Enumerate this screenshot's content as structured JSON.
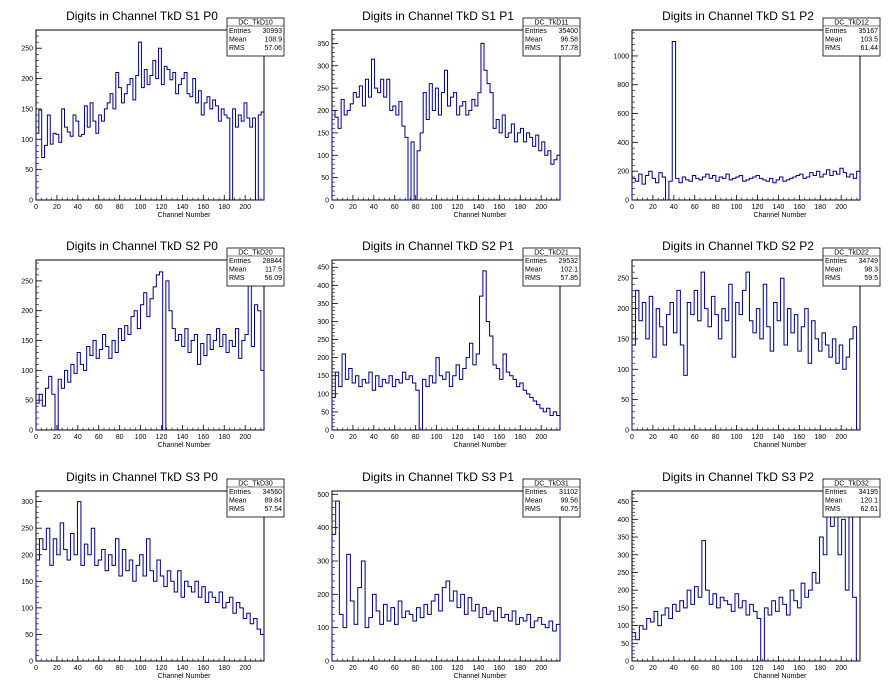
{
  "canvas": {
    "background": "#ffffff",
    "line_color": "#000080",
    "axis_color": "#000000"
  },
  "chart_data": [
    {
      "type": "line",
      "title": "Digits in Channel TkD S1 P0",
      "xlabel": "Channel Number",
      "stats": {
        "name": "DC_TkD10",
        "entries": "30993",
        "mean": "108.9",
        "rms": "57.06"
      },
      "xlim": [
        0,
        218
      ],
      "ylim": [
        0,
        280
      ],
      "xticks": [
        0,
        20,
        40,
        60,
        80,
        100,
        120,
        140,
        160,
        180,
        200
      ],
      "yticks": [
        0,
        50,
        100,
        150,
        200,
        250
      ],
      "y": [
        110,
        148,
        70,
        90,
        140,
        92,
        110,
        108,
        95,
        150,
        120,
        112,
        105,
        140,
        130,
        105,
        108,
        155,
        120,
        160,
        130,
        110,
        140,
        130,
        150,
        160,
        175,
        150,
        210,
        185,
        160,
        175,
        190,
        200,
        165,
        205,
        260,
        185,
        215,
        190,
        205,
        230,
        200,
        250,
        190,
        220,
        215,
        198,
        210,
        175,
        190,
        200,
        210,
        175,
        170,
        200,
        160,
        180,
        140,
        160,
        170,
        150,
        165,
        155,
        130,
        150,
        140,
        135,
        0,
        150,
        120,
        140,
        130,
        160,
        135,
        120,
        135,
        0,
        140,
        145
      ],
      "line_color": "#000080"
    },
    {
      "type": "line",
      "title": "Digits in Channel TkD S1 P1",
      "xlabel": "Channel Number",
      "stats": {
        "name": "DC_TkD11",
        "entries": "35400",
        "mean": "96.58",
        "rms": "57.78"
      },
      "xlim": [
        0,
        218
      ],
      "ylim": [
        0,
        380
      ],
      "xticks": [
        0,
        20,
        40,
        60,
        80,
        100,
        120,
        140,
        160,
        180,
        200
      ],
      "yticks": [
        0,
        50,
        100,
        150,
        200,
        250,
        300,
        350
      ],
      "y": [
        200,
        185,
        160,
        225,
        190,
        200,
        215,
        240,
        230,
        255,
        210,
        270,
        230,
        315,
        250,
        240,
        270,
        230,
        270,
        200,
        210,
        190,
        220,
        165,
        140,
        0,
        130,
        0,
        110,
        150,
        240,
        180,
        260,
        200,
        250,
        190,
        240,
        290,
        210,
        230,
        240,
        190,
        210,
        220,
        190,
        200,
        225,
        210,
        240,
        350,
        290,
        260,
        240,
        160,
        180,
        150,
        190,
        140,
        150,
        170,
        130,
        150,
        160,
        130,
        150,
        140,
        120,
        145,
        110,
        130,
        100,
        110,
        80,
        90,
        100
      ],
      "line_color": "#000080"
    },
    {
      "type": "line",
      "title": "Digits in Channel TkD S1 P2",
      "xlabel": "Channel Number",
      "stats": {
        "name": "DC_TkD12",
        "entries": "35167",
        "mean": "103.5",
        "rms": "61.44"
      },
      "xlim": [
        0,
        218
      ],
      "ylim": [
        0,
        1180
      ],
      "xticks": [
        0,
        20,
        40,
        60,
        80,
        100,
        120,
        140,
        160,
        180,
        200
      ],
      "yticks": [
        0,
        200,
        400,
        600,
        800,
        1000
      ],
      "y": [
        150,
        130,
        180,
        110,
        170,
        200,
        150,
        120,
        190,
        160,
        0,
        130,
        1100,
        150,
        120,
        160,
        140,
        130,
        170,
        150,
        140,
        160,
        180,
        150,
        170,
        130,
        160,
        150,
        180,
        140,
        150,
        160,
        170,
        130,
        140,
        150,
        160,
        170,
        150,
        140,
        130,
        150,
        120,
        140,
        160,
        130,
        140,
        150,
        160,
        170,
        180,
        150,
        160,
        190,
        170,
        200,
        160,
        180,
        210,
        170,
        200,
        180,
        220,
        190,
        160,
        180,
        150,
        200
      ],
      "line_color": "#000080"
    },
    {
      "type": "line",
      "title": "Digits in Channel TkD S2 P0",
      "xlabel": "Channel Number",
      "stats": {
        "name": "DC_TkD20",
        "entries": "28844",
        "mean": "117.5",
        "rms": "56.09"
      },
      "xlim": [
        0,
        218
      ],
      "ylim": [
        0,
        285
      ],
      "xticks": [
        0,
        20,
        40,
        60,
        80,
        100,
        120,
        140,
        160,
        180,
        200
      ],
      "yticks": [
        0,
        50,
        100,
        150,
        200,
        250
      ],
      "y": [
        45,
        60,
        40,
        70,
        90,
        60,
        0,
        85,
        70,
        100,
        80,
        110,
        95,
        130,
        110,
        100,
        140,
        125,
        150,
        120,
        135,
        160,
        140,
        120,
        150,
        130,
        170,
        150,
        175,
        160,
        190,
        200,
        170,
        210,
        230,
        190,
        220,
        240,
        260,
        265,
        0,
        250,
        200,
        170,
        150,
        160,
        140,
        170,
        130,
        150,
        160,
        110,
        145,
        125,
        160,
        135,
        150,
        170,
        140,
        160,
        130,
        150,
        140,
        170,
        120,
        150,
        160,
        250,
        140,
        210,
        200,
        100
      ],
      "line_color": "#000080"
    },
    {
      "type": "line",
      "title": "Digits in Channel TkD S2 P1",
      "xlabel": "Channel Number",
      "stats": {
        "name": "DC_TkD21",
        "entries": "29532",
        "mean": "102.1",
        "rms": "57.85"
      },
      "xlim": [
        0,
        218
      ],
      "ylim": [
        0,
        470
      ],
      "xticks": [
        0,
        20,
        40,
        60,
        80,
        100,
        120,
        140,
        160,
        180,
        200
      ],
      "yticks": [
        0,
        50,
        100,
        150,
        200,
        250,
        300,
        350,
        400,
        450
      ],
      "y": [
        90,
        160,
        120,
        210,
        140,
        170,
        130,
        150,
        120,
        140,
        130,
        160,
        110,
        150,
        120,
        140,
        130,
        150,
        120,
        140,
        130,
        160,
        140,
        150,
        130,
        110,
        0,
        140,
        120,
        150,
        130,
        200,
        150,
        140,
        160,
        120,
        150,
        180,
        140,
        170,
        200,
        240,
        180,
        210,
        370,
        440,
        300,
        260,
        180,
        170,
        140,
        210,
        160,
        150,
        140,
        120,
        130,
        110,
        100,
        90,
        80,
        70,
        60,
        50,
        60,
        40,
        50,
        40
      ],
      "line_color": "#000080"
    },
    {
      "type": "line",
      "title": "Digits in Channel TkD S2 P2",
      "xlabel": "Channel Number",
      "stats": {
        "name": "DC_TkD22",
        "entries": "34749",
        "mean": "98.3",
        "rms": "59.5"
      },
      "xlim": [
        0,
        218
      ],
      "ylim": [
        0,
        280
      ],
      "xticks": [
        0,
        20,
        40,
        60,
        80,
        100,
        120,
        140,
        160,
        180,
        200
      ],
      "yticks": [
        0,
        50,
        100,
        150,
        200,
        250
      ],
      "y": [
        140,
        230,
        180,
        210,
        150,
        220,
        120,
        200,
        170,
        140,
        190,
        210,
        160,
        230,
        140,
        90,
        210,
        190,
        230,
        180,
        260,
        200,
        170,
        220,
        190,
        150,
        200,
        180,
        240,
        120,
        210,
        190,
        230,
        260,
        180,
        160,
        200,
        150,
        240,
        170,
        130,
        210,
        180,
        250,
        140,
        200,
        160,
        190,
        130,
        170,
        200,
        110,
        180,
        150,
        130,
        160,
        140,
        120,
        150,
        110,
        140,
        100,
        120,
        150,
        170,
        0
      ],
      "line_color": "#000080"
    },
    {
      "type": "line",
      "title": "Digits in Channel TkD S3 P0",
      "xlabel": "Channel Number",
      "stats": {
        "name": "DC_TkD30",
        "entries": "34560",
        "mean": "89.84",
        "rms": "57.54"
      },
      "xlim": [
        0,
        218
      ],
      "ylim": [
        0,
        320
      ],
      "xticks": [
        0,
        20,
        40,
        60,
        80,
        100,
        120,
        140,
        160,
        180,
        200
      ],
      "yticks": [
        0,
        50,
        100,
        150,
        200,
        250,
        300
      ],
      "y": [
        190,
        230,
        210,
        250,
        180,
        230,
        200,
        260,
        210,
        190,
        240,
        200,
        300,
        180,
        220,
        200,
        250,
        180,
        190,
        210,
        170,
        200,
        180,
        230,
        160,
        210,
        170,
        190,
        150,
        180,
        200,
        160,
        230,
        170,
        150,
        190,
        160,
        140,
        170,
        150,
        130,
        170,
        120,
        150,
        140,
        130,
        150,
        120,
        140,
        110,
        130,
        120,
        110,
        130,
        100,
        110,
        120,
        90,
        110,
        100,
        80,
        90,
        70,
        80,
        60,
        50
      ],
      "line_color": "#000080"
    },
    {
      "type": "line",
      "title": "Digits in Channel TkD S3 P1",
      "xlabel": "Channel Number",
      "stats": {
        "name": "DC_TkD31",
        "entries": "31102",
        "mean": "99.56",
        "rms": "60.75"
      },
      "xlim": [
        0,
        218
      ],
      "ylim": [
        0,
        510
      ],
      "xticks": [
        0,
        20,
        40,
        60,
        80,
        100,
        120,
        140,
        160,
        180,
        200
      ],
      "yticks": [
        0,
        100,
        200,
        300,
        400,
        500
      ],
      "y": [
        380,
        480,
        140,
        100,
        320,
        180,
        110,
        220,
        300,
        100,
        130,
        200,
        150,
        110,
        170,
        120,
        160,
        110,
        180,
        130,
        150,
        140,
        120,
        160,
        130,
        170,
        140,
        180,
        200,
        150,
        220,
        240,
        180,
        210,
        160,
        200,
        140,
        190,
        150,
        170,
        130,
        160,
        140,
        150,
        120,
        160,
        130,
        140,
        120,
        150,
        110,
        130,
        120,
        140,
        100,
        120,
        130,
        110,
        100,
        120,
        90,
        110
      ],
      "line_color": "#000080"
    },
    {
      "type": "line",
      "title": "Digits in Channel TkD S3 P2",
      "xlabel": "Channel Number",
      "stats": {
        "name": "DC_TkD32",
        "entries": "34195",
        "mean": "120.1",
        "rms": "62.61"
      },
      "xlim": [
        0,
        218
      ],
      "ylim": [
        0,
        480
      ],
      "xticks": [
        0,
        20,
        40,
        60,
        80,
        100,
        120,
        140,
        160,
        180,
        200
      ],
      "yticks": [
        0,
        50,
        100,
        150,
        200,
        250,
        300,
        350,
        400,
        450
      ],
      "y": [
        80,
        60,
        100,
        90,
        120,
        110,
        140,
        100,
        130,
        150,
        120,
        160,
        140,
        170,
        150,
        200,
        160,
        210,
        180,
        340,
        200,
        160,
        190,
        150,
        180,
        170,
        160,
        140,
        190,
        150,
        170,
        130,
        160,
        140,
        120,
        0,
        150,
        130,
        170,
        140,
        180,
        160,
        130,
        200,
        170,
        150,
        220,
        180,
        200,
        250,
        220,
        350,
        300,
        420,
        380,
        460,
        300,
        400,
        200,
        450,
        180,
        0
      ],
      "line_color": "#000080"
    }
  ]
}
